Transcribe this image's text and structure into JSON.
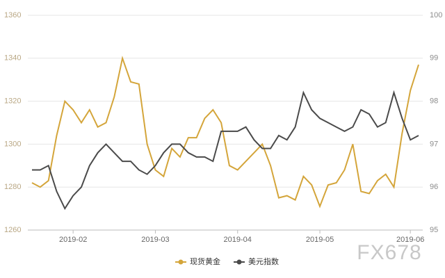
{
  "chart_data": {
    "type": "line",
    "categories": [
      null,
      null,
      null,
      null,
      null,
      "2019-02",
      null,
      null,
      null,
      null,
      null,
      null,
      null,
      null,
      null,
      "2019-03",
      null,
      null,
      null,
      null,
      null,
      null,
      null,
      null,
      null,
      "2019-04",
      null,
      null,
      null,
      null,
      null,
      null,
      null,
      null,
      null,
      "2019-05",
      null,
      null,
      null,
      null,
      null,
      null,
      null,
      null,
      null,
      null,
      "2019-06",
      null
    ],
    "series": [
      {
        "name": "现货黄金",
        "color": "#d4a53a",
        "axis": "y",
        "values": [
          1282,
          1280,
          1283,
          1304,
          1320,
          1316,
          1310,
          1316,
          1308,
          1310,
          1322,
          1340,
          1329,
          1328,
          1300,
          1288,
          1285,
          1298,
          1294,
          1303,
          1303,
          1312,
          1316,
          1310,
          1290,
          1288,
          1292,
          1296,
          1300,
          1290,
          1275,
          1276,
          1274,
          1285,
          1281,
          1271,
          1281,
          1282,
          1288,
          1300,
          1278,
          1277,
          1283,
          1286,
          1280,
          1305,
          1325,
          1337
        ]
      },
      {
        "name": "美元指数",
        "color": "#4a4a4a",
        "axis": "y2",
        "values": [
          96.4,
          96.4,
          96.5,
          95.9,
          95.5,
          95.8,
          96.0,
          96.5,
          96.8,
          97.0,
          96.8,
          96.6,
          96.6,
          96.4,
          96.3,
          96.5,
          96.8,
          97.0,
          97.0,
          96.8,
          96.7,
          96.7,
          96.6,
          97.3,
          97.3,
          97.3,
          97.4,
          97.1,
          96.9,
          96.9,
          97.2,
          97.1,
          97.4,
          98.2,
          97.8,
          97.6,
          97.5,
          97.4,
          97.3,
          97.4,
          97.8,
          97.7,
          97.4,
          97.5,
          98.2,
          97.6,
          97.1,
          97.2
        ]
      }
    ],
    "ylim": [
      1260,
      1360
    ],
    "yticks": [
      1260,
      1280,
      1300,
      1320,
      1340,
      1360
    ],
    "y2lim": [
      95,
      100
    ],
    "y2ticks": [
      95,
      96,
      97,
      98,
      99,
      100
    ],
    "grid": true,
    "legend": "bottom",
    "watermark": "FX678"
  }
}
